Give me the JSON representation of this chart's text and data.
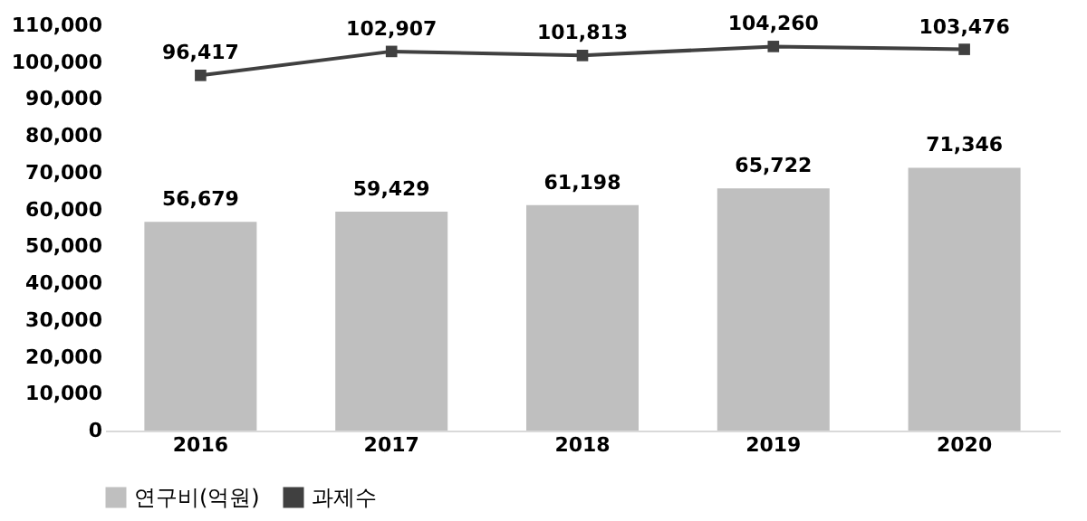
{
  "chart_data": {
    "type": "bar",
    "categories": [
      "2016",
      "2017",
      "2018",
      "2019",
      "2020"
    ],
    "series": [
      {
        "name": "연구비(억원)",
        "color": "#bfbfbf",
        "values": [
          56679,
          59429,
          61198,
          65722,
          71346
        ],
        "value_labels": [
          "56,679",
          "59,429",
          "61,198",
          "65,722",
          "71,346"
        ]
      },
      {
        "name": "과제수",
        "type": "line",
        "color": "#404040",
        "values": [
          96417,
          102907,
          101813,
          104260,
          103476
        ],
        "value_labels": [
          "96,417",
          "102,907",
          "101,813",
          "104,260",
          "103,476"
        ]
      }
    ],
    "ylim": [
      0,
      110000
    ],
    "yticks": [
      0,
      {
        "value": 10000,
        "label": "10,000"
      },
      {
        "value": 20000,
        "label": "20,000"
      },
      {
        "value": 30000,
        "label": "30,000"
      },
      {
        "value": 40000,
        "label": "40,000"
      },
      {
        "value": 50000,
        "label": "50,000"
      },
      {
        "value": 60000,
        "label": "60,000"
      },
      {
        "value": 70000,
        "label": "70,000"
      },
      {
        "value": 80000,
        "label": "80,000"
      },
      {
        "value": 90000,
        "label": "90,000"
      },
      {
        "value": 100000,
        "label": "100,000"
      },
      {
        "value": 110000,
        "label": "110,000"
      }
    ],
    "legend": "bottom",
    "grid": false,
    "marker": "square",
    "line_style": "solid"
  }
}
